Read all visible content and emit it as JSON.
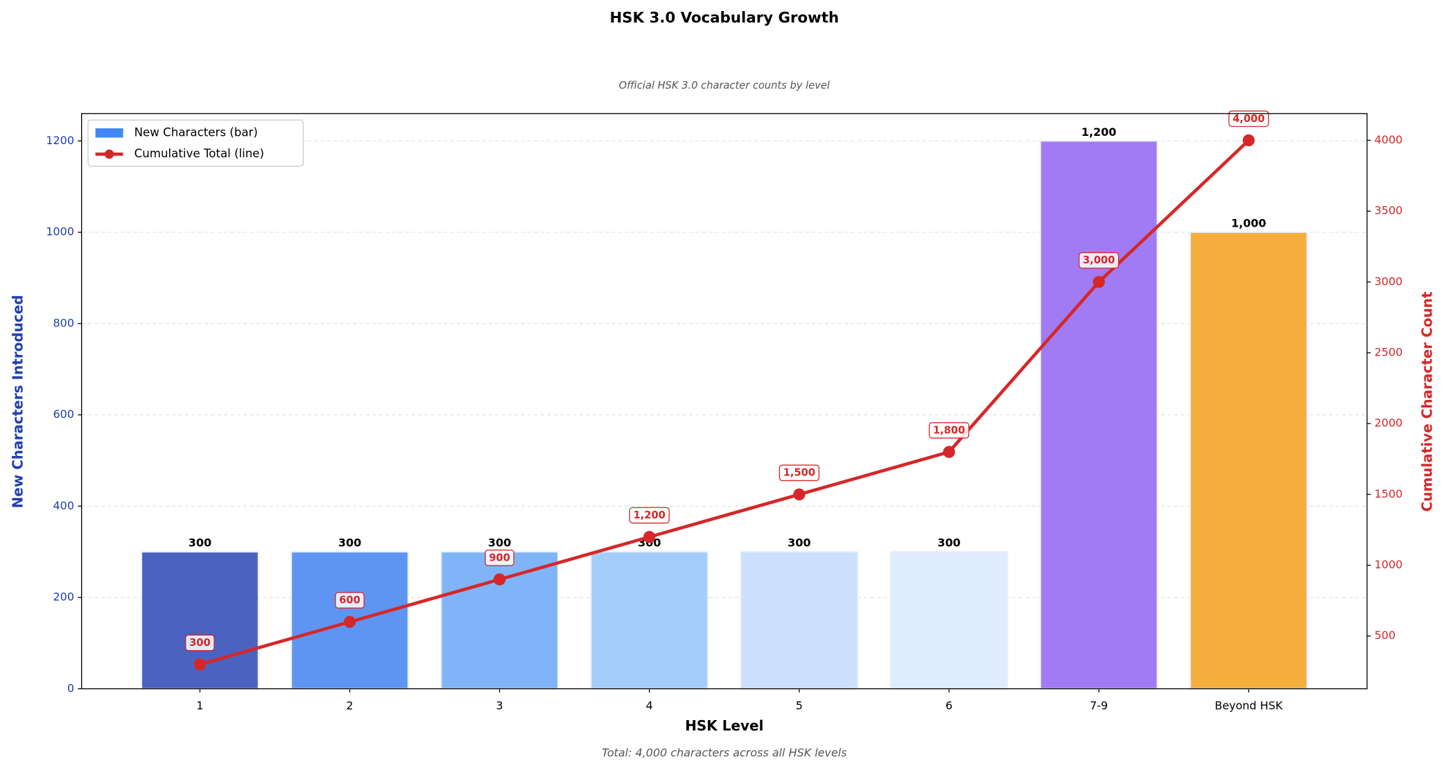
{
  "chart_data": {
    "type": "bar",
    "title": "HSK 3.0 Vocabulary Growth",
    "subtitle": "Official HSK 3.0 character counts by level",
    "xlabel": "HSK Level",
    "ylabel": "New Characters Introduced",
    "y2label": "Cumulative Character Count",
    "note": "Total: 4,000 characters across all HSK levels",
    "categories": [
      "1",
      "2",
      "3",
      "4",
      "5",
      "6",
      "7-9",
      "Beyond HSK"
    ],
    "ylim": [
      0,
      1260
    ],
    "yticks": [
      0,
      200,
      400,
      600,
      800,
      1000,
      1200
    ],
    "y2lim": [
      128,
      4189
    ],
    "y2ticks": [
      500,
      1000,
      1500,
      2000,
      2500,
      3000,
      3500,
      4000
    ],
    "grid": true,
    "legend": "upper left",
    "series": [
      {
        "name": "New Characters (bar)",
        "type": "bar",
        "color": "#4287f5",
        "colors": [
          "#4a63c0",
          "#5e95f3",
          "#7fb5f8",
          "#a5cdfb",
          "#cbe0fc",
          "#dfecfd",
          "#a17bf4",
          "#f5ae3d"
        ],
        "values": [
          300,
          300,
          300,
          300,
          300,
          300,
          1200,
          1000
        ],
        "value_labels": [
          "300",
          "300",
          "300",
          "300",
          "300",
          "300",
          "1,200",
          "1,000"
        ]
      },
      {
        "name": "Cumulative Total (line)",
        "type": "line",
        "axis": "y2",
        "color": "#d62728",
        "values": [
          300,
          600,
          900,
          1200,
          1500,
          1800,
          3000,
          4000
        ],
        "value_labels": [
          "300",
          "600",
          "900",
          "1,200",
          "1,500",
          "1,800",
          "3,000",
          "4,000"
        ]
      }
    ]
  }
}
